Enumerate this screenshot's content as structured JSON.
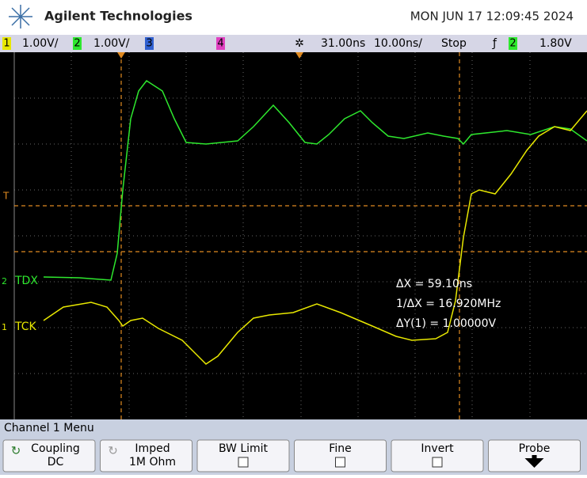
{
  "header": {
    "brand": "Agilent Technologies",
    "datetime": "MON JUN 17 12:09:45 2024"
  },
  "status_bar": {
    "ch1": "1",
    "ch1_scale": "1.00V/",
    "ch2": "2",
    "ch2_scale": "1.00V/",
    "ch3": "3",
    "ch4": "4",
    "delay": "31.00ns",
    "timebase": "10.00ns/",
    "run_state": "Stop",
    "trigger_source": "2",
    "trigger_level": "1.80V"
  },
  "screen": {
    "trigger_marker": "T",
    "ch2_marker": "2",
    "ch2_label": "TDX",
    "ch1_marker": "1",
    "ch1_label": "TCK",
    "measurements": [
      "ΔX = 59.10ns",
      "1/ΔX = 16.920MHz",
      "ΔY(1) = 1.00000V"
    ]
  },
  "menu": {
    "title": "Channel 1  Menu",
    "buttons": [
      {
        "label": "Coupling",
        "value": "DC"
      },
      {
        "label": "Imped",
        "value": "1M Ohm"
      },
      {
        "label": "BW Limit"
      },
      {
        "label": "Fine"
      },
      {
        "label": "Invert"
      },
      {
        "label": "Probe"
      }
    ]
  }
}
